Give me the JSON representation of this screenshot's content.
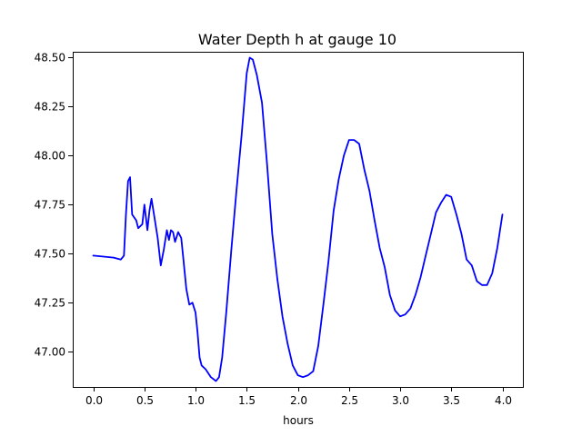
{
  "chart_data": {
    "type": "line",
    "title": "Water Depth h at gauge 10",
    "xlabel": "hours",
    "ylabel": "",
    "xlim": [
      -0.2,
      4.2
    ],
    "ylim": [
      46.82,
      48.53
    ],
    "grid": false,
    "x_ticks": [
      0.0,
      0.5,
      1.0,
      1.5,
      2.0,
      2.5,
      3.0,
      3.5,
      4.0
    ],
    "x_tick_labels": [
      "0.0",
      "0.5",
      "1.0",
      "1.5",
      "2.0",
      "2.5",
      "3.0",
      "3.5",
      "4.0"
    ],
    "y_ticks": [
      47.0,
      47.25,
      47.5,
      47.75,
      48.0,
      48.25,
      48.5
    ],
    "y_tick_labels": [
      "47.00",
      "47.25",
      "47.50",
      "47.75",
      "48.00",
      "48.25",
      "48.50"
    ],
    "series": [
      {
        "color": "#0000ff",
        "x": [
          0.0,
          0.1,
          0.2,
          0.27,
          0.3,
          0.32,
          0.34,
          0.36,
          0.38,
          0.42,
          0.44,
          0.48,
          0.5,
          0.53,
          0.55,
          0.57,
          0.6,
          0.63,
          0.66,
          0.69,
          0.72,
          0.74,
          0.76,
          0.78,
          0.8,
          0.83,
          0.86,
          0.88,
          0.91,
          0.94,
          0.97,
          1.0,
          1.02,
          1.04,
          1.06,
          1.1,
          1.15,
          1.2,
          1.23,
          1.26,
          1.3,
          1.35,
          1.4,
          1.45,
          1.5,
          1.53,
          1.56,
          1.6,
          1.65,
          1.7,
          1.75,
          1.8,
          1.85,
          1.9,
          1.95,
          2.0,
          2.05,
          2.1,
          2.15,
          2.2,
          2.25,
          2.3,
          2.35,
          2.4,
          2.45,
          2.5,
          2.55,
          2.6,
          2.65,
          2.7,
          2.75,
          2.8,
          2.85,
          2.9,
          2.95,
          3.0,
          3.05,
          3.1,
          3.15,
          3.2,
          3.25,
          3.3,
          3.35,
          3.4,
          3.45,
          3.5,
          3.55,
          3.6,
          3.65,
          3.7,
          3.75,
          3.8,
          3.85,
          3.9,
          3.95,
          4.0
        ],
        "y": [
          47.49,
          47.485,
          47.48,
          47.47,
          47.49,
          47.7,
          47.87,
          47.89,
          47.7,
          47.67,
          47.63,
          47.65,
          47.75,
          47.62,
          47.72,
          47.78,
          47.68,
          47.58,
          47.44,
          47.52,
          47.62,
          47.57,
          47.62,
          47.61,
          47.56,
          47.61,
          47.58,
          47.48,
          47.32,
          47.24,
          47.25,
          47.2,
          47.1,
          46.97,
          46.93,
          46.91,
          46.87,
          46.85,
          46.87,
          46.97,
          47.2,
          47.52,
          47.82,
          48.1,
          48.42,
          48.5,
          48.49,
          48.41,
          48.27,
          47.95,
          47.6,
          47.37,
          47.18,
          47.04,
          46.93,
          46.88,
          46.87,
          46.88,
          46.9,
          47.03,
          47.24,
          47.46,
          47.72,
          47.88,
          48.0,
          48.08,
          48.08,
          48.06,
          47.93,
          47.82,
          47.67,
          47.53,
          47.43,
          47.29,
          47.21,
          47.18,
          47.19,
          47.22,
          47.29,
          47.38,
          47.49,
          47.6,
          47.71,
          47.76,
          47.8,
          47.79,
          47.7,
          47.6,
          47.47,
          47.44,
          47.36,
          47.34,
          47.34,
          47.4,
          47.53,
          47.7
        ]
      }
    ]
  }
}
